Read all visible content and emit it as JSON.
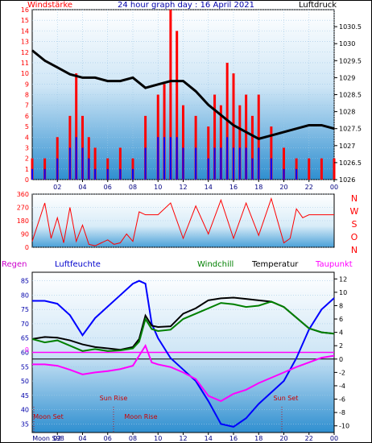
{
  "chart_data": [
    {
      "type": "line",
      "title": "24 hour graph day : 16 April 2021",
      "left_label": "Windstärke",
      "right_label": "Luftdruck",
      "x_ticks": [
        "02",
        "04",
        "06",
        "08",
        "10",
        "12",
        "14",
        "16",
        "18",
        "20",
        "22",
        "00"
      ],
      "y_left_ticks": [
        "0",
        "1",
        "2",
        "3",
        "4",
        "5",
        "6",
        "7",
        "8",
        "9",
        "10",
        "11",
        "12",
        "13",
        "14",
        "15",
        "16"
      ],
      "y_left_range": [
        0,
        16
      ],
      "y_right_ticks": [
        "1026",
        "1026.5",
        "1027",
        "1027.5",
        "1028",
        "1028.5",
        "1029",
        "1029.5",
        "1030",
        "1030.5"
      ],
      "y_right_range": [
        1026,
        1031
      ],
      "series": [
        {
          "name": "Windstärke",
          "color": "#ff0000",
          "style": "bars",
          "x": [
            0,
            1,
            2,
            3,
            3.5,
            4,
            4.5,
            5,
            6,
            7,
            8,
            9,
            10,
            10.5,
            11,
            11.5,
            12,
            13,
            14,
            14.5,
            15,
            15.5,
            16,
            16.5,
            17,
            17.5,
            18,
            19,
            20,
            21,
            22,
            23,
            24
          ],
          "values": [
            2,
            2,
            4,
            6,
            10,
            6,
            4,
            3,
            2,
            3,
            2,
            6,
            8,
            9,
            16,
            14,
            7,
            6,
            5,
            8,
            7,
            11,
            10,
            7,
            8,
            6,
            8,
            5,
            3,
            2,
            2,
            2,
            2
          ]
        },
        {
          "name": "Windböen",
          "color": "#0000ff",
          "style": "bars",
          "x": [
            0,
            1,
            2,
            3,
            3.5,
            4,
            4.5,
            5,
            6,
            7,
            8,
            9,
            10,
            10.5,
            11,
            11.5,
            12,
            13,
            14,
            14.5,
            15,
            15.5,
            16,
            16.5,
            17,
            17.5,
            18,
            19,
            20,
            21,
            22,
            23,
            24
          ],
          "values": [
            1,
            1,
            2,
            3,
            4,
            3,
            2,
            1,
            1,
            1,
            1,
            3,
            4,
            4,
            4,
            4,
            3,
            3,
            2,
            3,
            3,
            4,
            3,
            3,
            3,
            2,
            3,
            2,
            1,
            1,
            0,
            0,
            0
          ]
        },
        {
          "name": "Luftdruck",
          "color": "#000000",
          "style": "line",
          "x": [
            0,
            1,
            2,
            3,
            4,
            5,
            6,
            7,
            8,
            9,
            10,
            11,
            12,
            13,
            14,
            15,
            16,
            17,
            18,
            19,
            20,
            21,
            22,
            23,
            24
          ],
          "values": [
            1029.8,
            1029.5,
            1029.3,
            1029.1,
            1029.0,
            1029.0,
            1028.9,
            1028.9,
            1029.0,
            1028.7,
            1028.8,
            1028.9,
            1028.9,
            1028.6,
            1028.2,
            1027.9,
            1027.6,
            1027.4,
            1027.2,
            1027.3,
            1027.4,
            1027.5,
            1027.6,
            1027.6,
            1027.5
          ]
        }
      ]
    },
    {
      "type": "line",
      "title": "",
      "y_left_ticks": [
        "0",
        "90",
        "180",
        "270",
        "360"
      ],
      "y_left_range": [
        0,
        360
      ],
      "compass": [
        "N",
        "W",
        "S",
        "O",
        "N"
      ],
      "series": [
        {
          "name": "Windrichtung",
          "color": "#ff0000",
          "style": "line",
          "x": [
            0,
            1,
            1.5,
            2,
            2.5,
            3,
            3.5,
            4,
            4.5,
            5,
            5.5,
            6,
            6.5,
            7,
            7.5,
            8,
            8.5,
            9,
            10,
            11,
            12,
            13,
            14,
            15,
            16,
            17,
            18,
            19,
            20,
            20.5,
            21,
            21.5,
            22,
            23,
            24
          ],
          "values": [
            40,
            300,
            60,
            200,
            30,
            270,
            40,
            150,
            20,
            10,
            30,
            50,
            20,
            30,
            90,
            40,
            240,
            220,
            220,
            300,
            60,
            280,
            90,
            320,
            60,
            300,
            80,
            330,
            30,
            60,
            260,
            200,
            220,
            220,
            220
          ]
        }
      ]
    },
    {
      "type": "line",
      "title": "",
      "legend": [
        "Regen",
        "Luftfeuchte",
        "Windchill",
        "Temperatur",
        "Taupunkt"
      ],
      "y_left_ticks": [
        "35",
        "40",
        "45",
        "50",
        "55",
        "60",
        "65",
        "70",
        "75",
        "80",
        "85"
      ],
      "y_left_range": [
        32,
        88
      ],
      "y_right_ticks": [
        "12",
        "10",
        "8",
        "6",
        "4",
        "2",
        "0",
        "-2",
        "-4",
        "-6",
        "-8",
        "-10"
      ],
      "y_right_range": [
        -11,
        13
      ],
      "rain_value": "0",
      "x_ticks": [
        "Moon S98",
        "02",
        "04",
        "06",
        "08",
        "10",
        "12",
        "14",
        "16",
        "18",
        "20",
        "22",
        "00"
      ],
      "annotations": [
        "Moon Set",
        "Sun Rise",
        "Moon Rise",
        "Sun Set"
      ],
      "series": [
        {
          "name": "Luftfeuchte",
          "color": "#0000ff",
          "style": "line",
          "x": [
            0,
            1,
            2,
            3,
            4,
            5,
            6,
            7,
            8,
            8.5,
            9,
            9.5,
            10,
            11,
            12,
            13,
            14,
            15,
            16,
            17,
            18,
            19,
            20,
            21,
            22,
            23,
            24
          ],
          "values": [
            78,
            78,
            77,
            73,
            66,
            72,
            76,
            80,
            84,
            85,
            84,
            70,
            65,
            58,
            54,
            50,
            43,
            35,
            34,
            37,
            42,
            46,
            50,
            58,
            68,
            75,
            79
          ]
        },
        {
          "name": "Temperatur",
          "color": "#000000",
          "style": "line",
          "x": [
            0,
            1,
            2,
            3,
            4,
            5,
            6,
            7,
            8,
            8.5,
            9,
            9.5,
            10,
            11,
            12,
            13,
            14,
            15,
            16,
            17,
            18,
            19,
            20,
            21,
            22,
            23,
            24
          ],
          "values": [
            3.0,
            3.3,
            3.2,
            2.8,
            2.2,
            1.8,
            1.6,
            1.4,
            1.8,
            3.0,
            6.5,
            5.0,
            4.8,
            4.9,
            6.8,
            7.6,
            8.8,
            9.1,
            9.2,
            9.0,
            8.8,
            8.6,
            7.8,
            6.2,
            4.6,
            4.0,
            3.8
          ]
        },
        {
          "name": "Windchill",
          "color": "#008000",
          "style": "line",
          "x": [
            0,
            1,
            2,
            3,
            4,
            5,
            6,
            7,
            8,
            8.5,
            9,
            9.5,
            10,
            11,
            12,
            13,
            14,
            15,
            16,
            17,
            18,
            19,
            20,
            21,
            22,
            23,
            24
          ],
          "values": [
            3.0,
            2.5,
            2.8,
            2.0,
            1.2,
            1.5,
            1.2,
            1.3,
            1.6,
            2.6,
            6.0,
            4.5,
            4.2,
            4.4,
            6.0,
            6.8,
            7.6,
            8.4,
            8.2,
            7.8,
            8.0,
            8.6,
            7.8,
            6.2,
            4.6,
            4.0,
            3.8
          ]
        },
        {
          "name": "Taupunkt",
          "color": "#ff00ff",
          "style": "line",
          "x": [
            0,
            1,
            2,
            3,
            4,
            5,
            6,
            7,
            8,
            8.5,
            9,
            9.5,
            10,
            11,
            12,
            13,
            14,
            15,
            16,
            17,
            18,
            19,
            20,
            21,
            22,
            23,
            24
          ],
          "values": [
            -0.8,
            -0.8,
            -1.0,
            -1.6,
            -2.3,
            -2.0,
            -1.8,
            -1.5,
            -1.0,
            0.5,
            2.0,
            -0.5,
            -0.8,
            -1.2,
            -2.0,
            -3.0,
            -5.5,
            -6.3,
            -5.2,
            -4.6,
            -3.6,
            -2.8,
            -2.0,
            -1.2,
            -0.5,
            0.2,
            0.5
          ]
        }
      ]
    }
  ]
}
